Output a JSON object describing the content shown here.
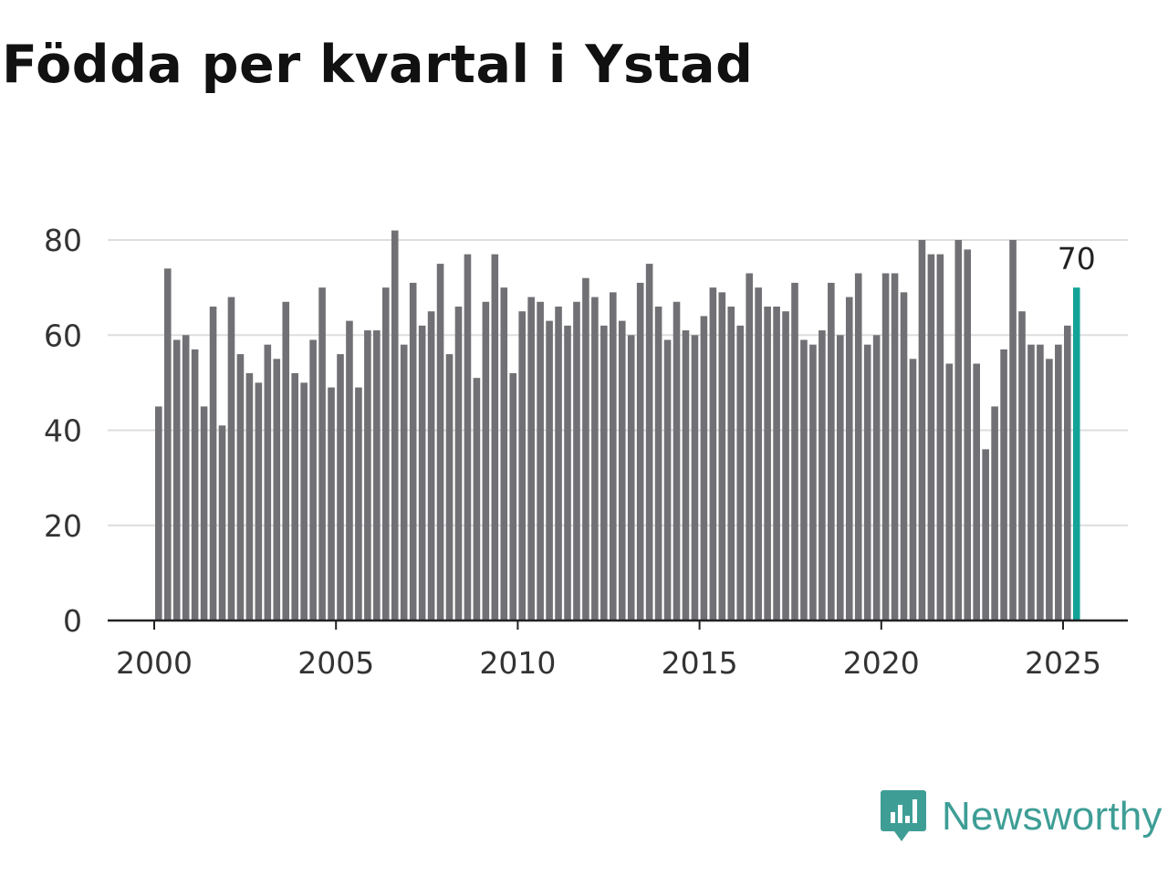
{
  "title": "Födda per kvartal i Ystad",
  "brand": {
    "name": "Newsworthy",
    "icon": "bar-chart-speech-bubble-icon",
    "color": "#3e9e96"
  },
  "colors": {
    "bar": "#717074",
    "highlight": "#13a398",
    "grid": "#dddddd",
    "axis": "#222222"
  },
  "chart_data": {
    "type": "bar",
    "title": "Födda per kvartal i Ystad",
    "xlabel": "",
    "ylabel": "",
    "ylim": [
      0,
      85
    ],
    "yticks": [
      0,
      20,
      40,
      60,
      80
    ],
    "xticks": [
      "2000",
      "2005",
      "2010",
      "2015",
      "2020",
      "2025"
    ],
    "grid": true,
    "start": "2000 Q1",
    "end": "2025 Q2",
    "highlight_label": "70",
    "values": [
      45,
      74,
      59,
      60,
      57,
      45,
      66,
      41,
      68,
      56,
      52,
      50,
      58,
      55,
      67,
      52,
      50,
      59,
      70,
      49,
      56,
      63,
      49,
      61,
      61,
      70,
      82,
      58,
      71,
      62,
      65,
      75,
      56,
      66,
      77,
      51,
      67,
      77,
      70,
      52,
      65,
      68,
      67,
      63,
      66,
      62,
      67,
      72,
      68,
      62,
      69,
      63,
      60,
      71,
      75,
      66,
      59,
      67,
      61,
      60,
      64,
      70,
      69,
      66,
      62,
      73,
      70,
      66,
      66,
      65,
      71,
      59,
      58,
      61,
      71,
      60,
      68,
      73,
      58,
      60,
      73,
      73,
      69,
      55,
      80,
      77,
      77,
      54,
      80,
      78,
      54,
      36,
      45,
      57,
      80,
      65,
      58,
      58,
      55,
      58,
      62,
      70
    ]
  }
}
